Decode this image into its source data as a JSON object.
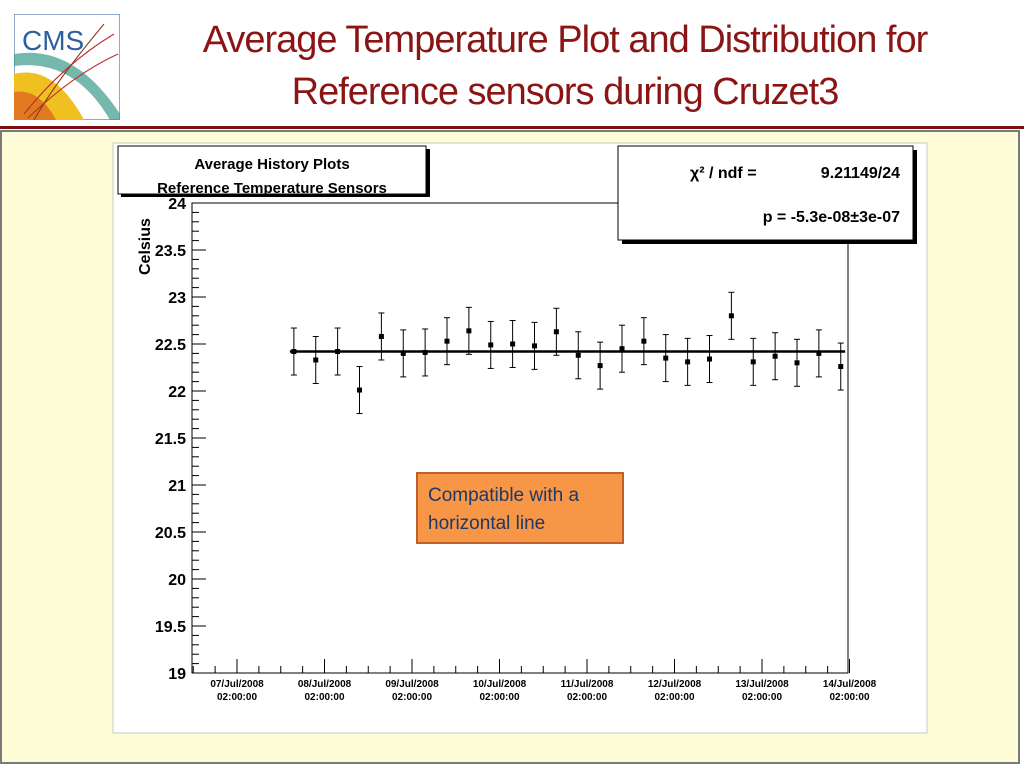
{
  "slide": {
    "title_line1": "Average Temperature Plot and Distribution for",
    "title_line2": "Reference sensors during Cruzet3",
    "logo_text": "CMS",
    "annotation": "Compatible with a horizontal line",
    "colors": {
      "title": "#8b1414",
      "panel_bg": "#fefdd8",
      "annotation_bg": "#f79646",
      "annotation_text": "#1f3864"
    }
  },
  "chart_data": {
    "type": "scatter",
    "title": "Average History Plots",
    "subtitle": "Reference Temperature Sensors",
    "ylabel": "Celsius",
    "ylim": [
      19,
      24
    ],
    "yticks": [
      "24",
      "23.5",
      "23",
      "22.5",
      "22",
      "21.5",
      "21",
      "20.5",
      "20",
      "19.5",
      "19"
    ],
    "xticks": [
      {
        "date": "07/Jul/2008",
        "time": "02:00:00"
      },
      {
        "date": "08/Jul/2008",
        "time": "02:00:00"
      },
      {
        "date": "09/Jul/2008",
        "time": "02:00:00"
      },
      {
        "date": "10/Jul/2008",
        "time": "02:00:00"
      },
      {
        "date": "11/Jul/2008",
        "time": "02:00:00"
      },
      {
        "date": "12/Jul/2008",
        "time": "02:00:00"
      },
      {
        "date": "13/Jul/2008",
        "time": "02:00:00"
      },
      {
        "date": "14/Jul/2008",
        "time": "02:00:00"
      }
    ],
    "xlim": [
      0,
      7.4
    ],
    "points": [
      {
        "x": 0.65,
        "y": 22.42,
        "err": 0.25
      },
      {
        "x": 0.9,
        "y": 22.33,
        "err": 0.25
      },
      {
        "x": 1.15,
        "y": 22.42,
        "err": 0.25
      },
      {
        "x": 1.4,
        "y": 22.01,
        "err": 0.25
      },
      {
        "x": 1.65,
        "y": 22.58,
        "err": 0.25
      },
      {
        "x": 1.9,
        "y": 22.4,
        "err": 0.25
      },
      {
        "x": 2.15,
        "y": 22.41,
        "err": 0.25
      },
      {
        "x": 2.4,
        "y": 22.53,
        "err": 0.25
      },
      {
        "x": 2.65,
        "y": 22.64,
        "err": 0.25
      },
      {
        "x": 2.9,
        "y": 22.49,
        "err": 0.25
      },
      {
        "x": 3.15,
        "y": 22.5,
        "err": 0.25
      },
      {
        "x": 3.4,
        "y": 22.48,
        "err": 0.25
      },
      {
        "x": 3.65,
        "y": 22.63,
        "err": 0.25
      },
      {
        "x": 3.9,
        "y": 22.38,
        "err": 0.25
      },
      {
        "x": 4.15,
        "y": 22.27,
        "err": 0.25
      },
      {
        "x": 4.4,
        "y": 22.45,
        "err": 0.25
      },
      {
        "x": 4.65,
        "y": 22.53,
        "err": 0.25
      },
      {
        "x": 4.9,
        "y": 22.35,
        "err": 0.25
      },
      {
        "x": 5.15,
        "y": 22.31,
        "err": 0.25
      },
      {
        "x": 5.4,
        "y": 22.34,
        "err": 0.25
      },
      {
        "x": 5.65,
        "y": 22.8,
        "err": 0.25
      },
      {
        "x": 5.9,
        "y": 22.31,
        "err": 0.25
      },
      {
        "x": 6.15,
        "y": 22.37,
        "err": 0.25
      },
      {
        "x": 6.4,
        "y": 22.3,
        "err": 0.25
      },
      {
        "x": 6.65,
        "y": 22.4,
        "err": 0.25
      },
      {
        "x": 6.9,
        "y": 22.26,
        "err": 0.25
      }
    ],
    "fit": {
      "y": 22.42,
      "x_range": [
        0.65,
        6.95
      ]
    },
    "stats": {
      "chi2_label": "χ² / ndf =",
      "chi2_value": "9.21149/24",
      "p_text": "p = -5.3e-08±3e-07"
    }
  }
}
